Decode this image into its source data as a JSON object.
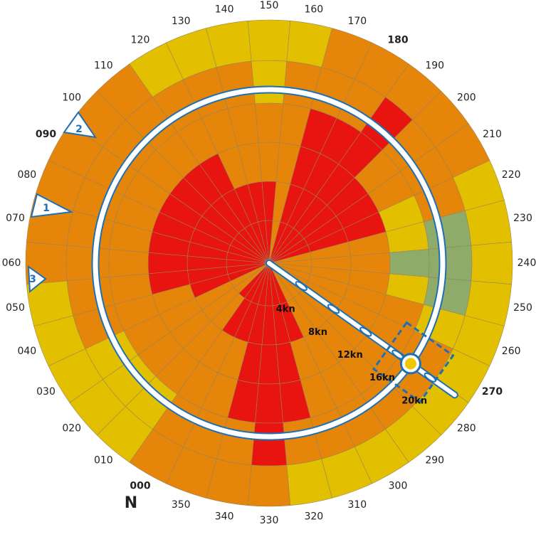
{
  "north_label": "N",
  "directions": [
    {
      "label": "000",
      "bold": true
    },
    {
      "label": "010",
      "bold": false
    },
    {
      "label": "020",
      "bold": false
    },
    {
      "label": "030",
      "bold": false
    },
    {
      "label": "040",
      "bold": false
    },
    {
      "label": "050",
      "bold": false
    },
    {
      "label": "060",
      "bold": false
    },
    {
      "label": "070",
      "bold": false
    },
    {
      "label": "080",
      "bold": false
    },
    {
      "label": "090",
      "bold": true
    },
    {
      "label": "100",
      "bold": false
    },
    {
      "label": "110",
      "bold": false
    },
    {
      "label": "120",
      "bold": false
    },
    {
      "label": "130",
      "bold": false
    },
    {
      "label": "140",
      "bold": false
    },
    {
      "label": "150",
      "bold": false
    },
    {
      "label": "160",
      "bold": false
    },
    {
      "label": "170",
      "bold": false
    },
    {
      "label": "180",
      "bold": true
    },
    {
      "label": "190",
      "bold": false
    },
    {
      "label": "200",
      "bold": false
    },
    {
      "label": "210",
      "bold": false
    },
    {
      "label": "220",
      "bold": false
    },
    {
      "label": "230",
      "bold": false
    },
    {
      "label": "240",
      "bold": false
    },
    {
      "label": "250",
      "bold": false
    },
    {
      "label": "260",
      "bold": false
    },
    {
      "label": "270",
      "bold": true
    },
    {
      "label": "280",
      "bold": false
    },
    {
      "label": "290",
      "bold": false
    },
    {
      "label": "300",
      "bold": false
    },
    {
      "label": "310",
      "bold": false
    },
    {
      "label": "320",
      "bold": false
    },
    {
      "label": "330",
      "bold": false
    },
    {
      "label": "340",
      "bold": false
    },
    {
      "label": "350",
      "bold": false
    }
  ],
  "cells": [
    [
      "#e8140f",
      "#e8140f",
      "#e5850a",
      "#e5850a",
      "#e5850a",
      "#e5850a"
    ],
    [
      "#e8140f",
      "#e5850a",
      "#e5850a",
      "#e5850a",
      "#e2c000",
      "#e2c000"
    ],
    [
      "#e5850a",
      "#e5850a",
      "#e5850a",
      "#e5850a",
      "#e2c000",
      "#e2c000"
    ],
    [
      "#e5850a",
      "#e5850a",
      "#e5850a",
      "#e5850a",
      "#e2c000",
      "#e2c000"
    ],
    [
      "#e8140f",
      "#e8140f",
      "#e5850a",
      "#e5850a",
      "#e5850a",
      "#e2c000"
    ],
    [
      "#e8140f",
      "#e8140f",
      "#e8140f",
      "#e5850a",
      "#e5850a",
      "#e2c000"
    ],
    [
      "#e8140f",
      "#e8140f",
      "#e8140f",
      "#e5850a",
      "#e5850a",
      "#e5850a"
    ],
    [
      "#e8140f",
      "#e8140f",
      "#e8140f",
      "#e5850a",
      "#e5850a",
      "#e5850a"
    ],
    [
      "#e8140f",
      "#e8140f",
      "#e8140f",
      "#e5850a",
      "#e5850a",
      "#e5850a"
    ],
    [
      "#e8140f",
      "#e8140f",
      "#e8140f",
      "#e5850a",
      "#e5850a",
      "#e5850a"
    ],
    [
      "#e8140f",
      "#e8140f",
      "#e8140f",
      "#e5850a",
      "#e5850a",
      "#e5850a"
    ],
    [
      "#e8140f",
      "#e8140f",
      "#e8140f",
      "#e5850a",
      "#e5850a",
      "#e5850a"
    ],
    [
      "#e8140f",
      "#e8140f",
      "#e8140f",
      "#e5850a",
      "#e5850a",
      "#e2c000"
    ],
    [
      "#e8140f",
      "#e8140f",
      "#e5850a",
      "#e5850a",
      "#e5850a",
      "#e2c000"
    ],
    [
      "#e8140f",
      "#e8140f",
      "#e5850a",
      "#e5850a",
      "#e5850a",
      "#e2c000"
    ],
    [
      "#e8140f",
      "#e8140f",
      "#e5850a",
      "#e5850a",
      "#e2c000",
      "#e2c000"
    ],
    [
      "#e5850a",
      "#e5850a",
      "#e5850a",
      "#e5850a",
      "#e5850a",
      "#e2c000"
    ],
    [
      "#e8140f",
      "#e8140f",
      "#e8140f",
      "#e8140f",
      "#e5850a",
      "#e5850a"
    ],
    [
      "#e8140f",
      "#e8140f",
      "#e8140f",
      "#e8140f",
      "#e5850a",
      "#e5850a"
    ],
    [
      "#e8140f",
      "#e8140f",
      "#e8140f",
      "#e8140f",
      "#e8140f",
      "#e5850a"
    ],
    [
      "#e8140f",
      "#e8140f",
      "#e8140f",
      "#e5850a",
      "#e5850a",
      "#e5850a"
    ],
    [
      "#e8140f",
      "#e8140f",
      "#e8140f",
      "#e5850a",
      "#e5850a",
      "#e5850a"
    ],
    [
      "#e8140f",
      "#e8140f",
      "#e8140f",
      "#e2c000",
      "#e5850a",
      "#e2c000"
    ],
    [
      "#e5850a",
      "#e5850a",
      "#e5850a",
      "#e2c000",
      "#8fab6a",
      "#e2c000"
    ],
    [
      "#e5850a",
      "#e5850a",
      "#e5850a",
      "#8fab6a",
      "#8fab6a",
      "#e2c000"
    ],
    [
      "#e5850a",
      "#e5850a",
      "#e5850a",
      "#e2c000",
      "#8fab6a",
      "#e2c000"
    ],
    [
      "#e5850a",
      "#e5850a",
      "#e5850a",
      "#e5850a",
      "#e2c000",
      "#e2c000"
    ],
    [
      "#e5850a",
      "#e5850a",
      "#e5850a",
      "#e5850a",
      "#e5850a",
      "#e2c000"
    ],
    [
      "#e5850a",
      "#e5850a",
      "#e5850a",
      "#e5850a",
      "#e5850a",
      "#e2c000"
    ],
    [
      "#e5850a",
      "#e5850a",
      "#e5850a",
      "#e5850a",
      "#e5850a",
      "#e2c000"
    ],
    [
      "#e5850a",
      "#e5850a",
      "#e5850a",
      "#e5850a",
      "#e5850a",
      "#e2c000"
    ],
    [
      "#e8140f",
      "#e8140f",
      "#e5850a",
      "#e5850a",
      "#e5850a",
      "#e2c000"
    ],
    [
      "#e8140f",
      "#e8140f",
      "#e8140f",
      "#e8140f",
      "#e5850a",
      "#e2c000"
    ],
    [
      "#e8140f",
      "#e8140f",
      "#e8140f",
      "#e8140f",
      "#e8140f",
      "#e5850a"
    ],
    [
      "#e8140f",
      "#e8140f",
      "#e8140f",
      "#e8140f",
      "#e5850a",
      "#e5850a"
    ],
    [
      "#e8140f",
      "#e8140f",
      "#e5850a",
      "#e5850a",
      "#e5850a",
      "#e5850a"
    ]
  ],
  "speed_labels": [
    "4kn",
    "8kn",
    "12kn",
    "16kn",
    "20kn"
  ],
  "markers": [
    "1",
    "2",
    "3"
  ]
}
